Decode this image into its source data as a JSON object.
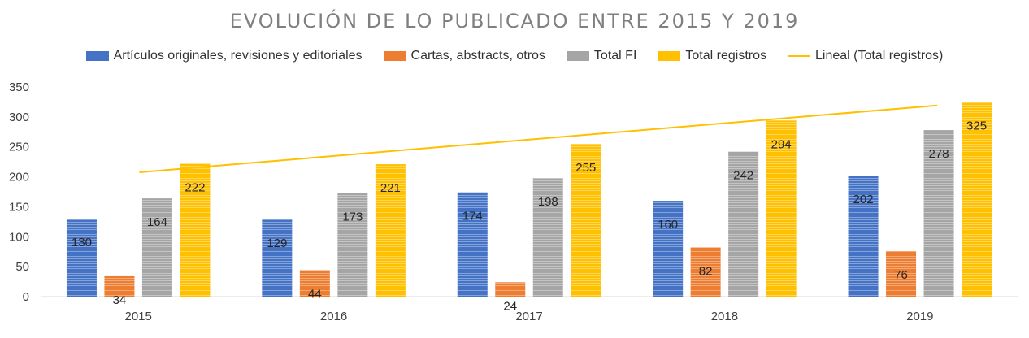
{
  "chart_data": {
    "type": "bar",
    "title": "EVOLUCIÓN DE LO PUBLICADO ENTRE 2015 Y 2019",
    "categories": [
      "2015",
      "2016",
      "2017",
      "2018",
      "2019"
    ],
    "series": [
      {
        "name": "Artículos originales, revisiones y editoriales",
        "values": [
          130,
          129,
          174,
          160,
          202
        ],
        "color": "#4472c4"
      },
      {
        "name": "Cartas, abstracts, otros",
        "values": [
          34,
          44,
          24,
          82,
          76
        ],
        "color": "#ed7d31"
      },
      {
        "name": "Total FI",
        "values": [
          164,
          173,
          198,
          242,
          278
        ],
        "color": "#a5a5a5"
      },
      {
        "name": "Total registros",
        "values": [
          222,
          221,
          255,
          294,
          325
        ],
        "color": "#ffc000"
      }
    ],
    "trendline": {
      "name": "Lineal (Total registros)",
      "type": "linear",
      "series": "Total registros",
      "color": "#ffc000"
    },
    "ylim": [
      0,
      350
    ],
    "yticks": [
      0,
      50,
      100,
      150,
      200,
      250,
      300,
      350
    ],
    "xlabel": "",
    "ylabel": "",
    "legend_position": "top",
    "grid": false
  }
}
